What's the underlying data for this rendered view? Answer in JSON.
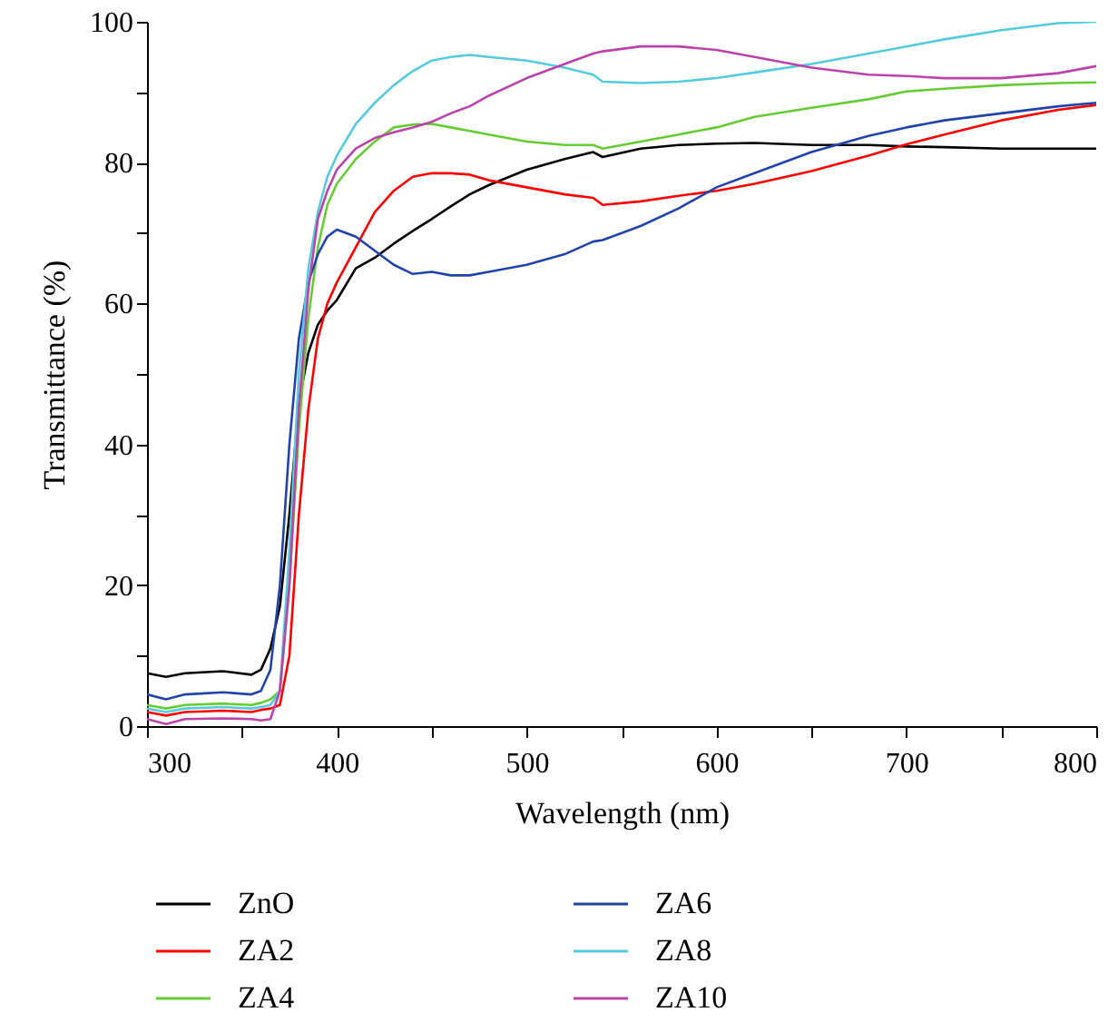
{
  "chart_data": {
    "type": "line",
    "xlabel": "Wavelength (nm)",
    "ylabel": "Transmittance (%)",
    "x": [
      300,
      310,
      320,
      340,
      355,
      360,
      365,
      370,
      375,
      380,
      385,
      390,
      395,
      400,
      410,
      420,
      430,
      440,
      450,
      460,
      470,
      480,
      500,
      520,
      535,
      540,
      560,
      580,
      600,
      620,
      650,
      680,
      700,
      720,
      750,
      780,
      800
    ],
    "series": [
      {
        "name": "ZnO",
        "color": "#000000",
        "values": [
          7.5,
          7,
          7.5,
          7.8,
          7.3,
          8,
          11,
          17,
          30,
          46,
          53,
          57,
          59,
          60.5,
          65,
          66.5,
          68.5,
          70.3,
          72,
          73.8,
          75.5,
          76.8,
          79,
          80.5,
          81.5,
          80.8,
          82,
          82.5,
          82.7,
          82.8,
          82.5,
          82.5,
          82.3,
          82.2,
          82,
          82,
          82
        ]
      },
      {
        "name": "ZA2",
        "color": "#ff0000",
        "values": [
          2,
          1.5,
          2,
          2.2,
          2,
          2.3,
          2.5,
          3,
          10,
          30,
          45,
          55,
          60,
          63,
          68,
          73,
          76,
          78,
          78.5,
          78.5,
          78.3,
          77.5,
          76.5,
          75.5,
          75,
          74,
          74.5,
          75.3,
          76,
          77,
          78.8,
          81,
          82.6,
          84,
          86,
          87.5,
          88.2
        ]
      },
      {
        "name": "ZA4",
        "color": "#66cc33",
        "values": [
          3,
          2.5,
          3,
          3.2,
          3,
          3.3,
          3.8,
          5,
          20,
          42,
          58,
          68,
          74,
          77,
          80.5,
          83,
          85,
          85.4,
          85.5,
          85,
          84.5,
          84,
          83,
          82.5,
          82.5,
          82,
          83,
          84,
          85,
          86.5,
          87.8,
          89,
          90.1,
          90.5,
          91,
          91.3,
          91.4
        ]
      },
      {
        "name": "ZA6",
        "color": "#2244aa",
        "values": [
          4.5,
          3.8,
          4.5,
          4.8,
          4.5,
          5,
          8,
          20,
          40,
          55,
          63,
          67,
          69.5,
          70.5,
          69.5,
          67.5,
          65.5,
          64.2,
          64.5,
          64,
          64,
          64.5,
          65.5,
          67,
          68.8,
          69,
          71,
          73.5,
          76.5,
          78.5,
          81.5,
          83.8,
          85,
          86,
          87,
          88,
          88.5
        ]
      },
      {
        "name": "ZA8",
        "color": "#55ccdd",
        "values": [
          2.5,
          2,
          2.5,
          2.7,
          2.5,
          2.7,
          3,
          5,
          25,
          50,
          65,
          73,
          78,
          81,
          85.5,
          88.5,
          91,
          93,
          94.5,
          95,
          95.3,
          95,
          94.5,
          93.5,
          92.5,
          91.5,
          91.3,
          91.5,
          92,
          92.8,
          94,
          95.5,
          96.5,
          97.5,
          98.8,
          99.8,
          100
        ]
      },
      {
        "name": "ZA10",
        "color": "#bb44aa",
        "values": [
          1,
          0.3,
          1,
          1.1,
          1,
          0.8,
          1,
          5,
          20,
          45,
          62,
          72,
          76,
          79,
          82,
          83.5,
          84.3,
          85,
          85.8,
          87,
          88,
          89.5,
          92,
          94,
          95.5,
          95.8,
          96.5,
          96.5,
          96,
          95,
          93.5,
          92.5,
          92.3,
          92,
          92,
          92.7,
          93.7
        ]
      }
    ],
    "xlim": [
      300,
      800
    ],
    "ylim": [
      0,
      100
    ],
    "xticks": [
      300,
      {
        "value": 350,
        "label": null
      },
      400,
      {
        "value": 450,
        "label": null
      },
      500,
      {
        "value": 550,
        "label": null
      },
      600,
      {
        "value": 650,
        "label": null
      },
      700,
      {
        "value": 750,
        "label": null
      },
      800
    ],
    "yticks": [
      0,
      {
        "value": 10,
        "label": null
      },
      20,
      {
        "value": 30,
        "label": null
      },
      40,
      {
        "value": 50,
        "label": null
      },
      60,
      {
        "value": 70,
        "label": null
      },
      80,
      {
        "value": 90,
        "label": null
      },
      100
    ],
    "grid": false,
    "legend": "bottom",
    "marker": "none",
    "line_style": "solid"
  }
}
